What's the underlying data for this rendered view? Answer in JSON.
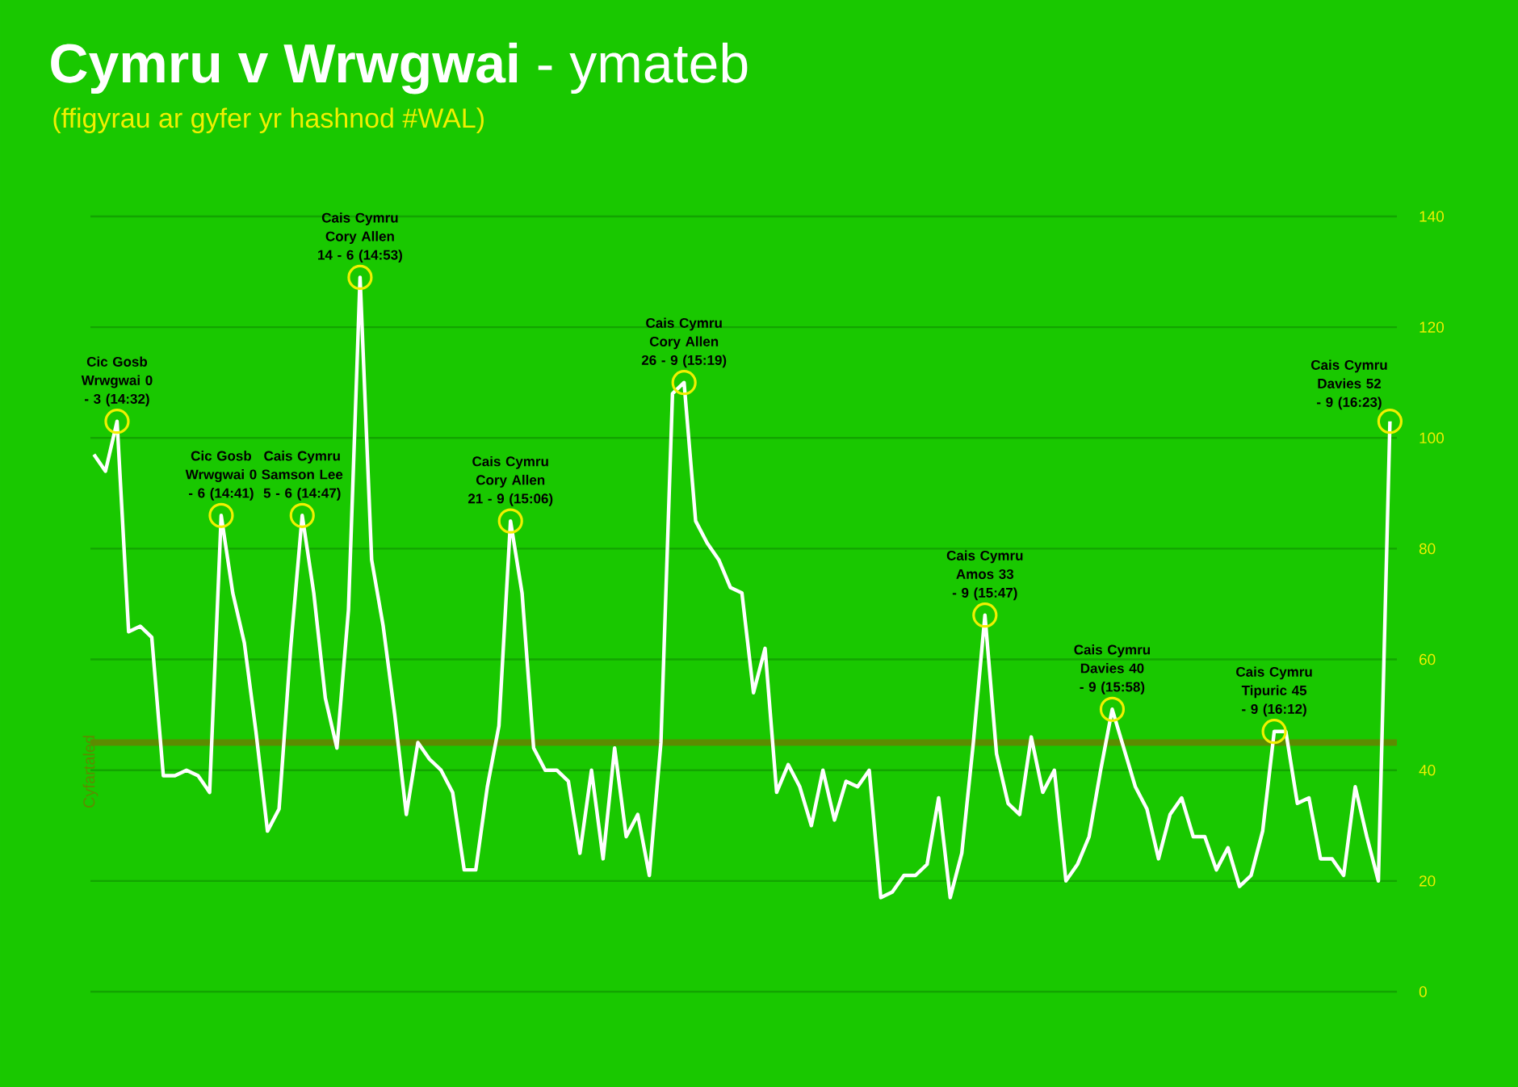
{
  "chart_data": {
    "type": "line",
    "title": "**Cymru v Wrwgwai** - ymateb",
    "subtitle": "(ffigyrau ar gyfer yr hashnod #WAL)",
    "categories": [
      null,
      null,
      null,
      null,
      null,
      null,
      null,
      null,
      null,
      null,
      null,
      null,
      null,
      null,
      null,
      null,
      null,
      null,
      null,
      null,
      null,
      null,
      null,
      null,
      null,
      null,
      null,
      null,
      null,
      null,
      null,
      null,
      null,
      null,
      null,
      null,
      null,
      null,
      null,
      null,
      null,
      null,
      null,
      null,
      null,
      null,
      null,
      null,
      null,
      null,
      null,
      null,
      null,
      null,
      null,
      null,
      null,
      null,
      null,
      null,
      null,
      null,
      null,
      null,
      null,
      null,
      null,
      null,
      null,
      null,
      null,
      null,
      null,
      null,
      null,
      null,
      null,
      null,
      null,
      null,
      null,
      null,
      null,
      null,
      null,
      null,
      null,
      null,
      null,
      null,
      null,
      null,
      null,
      null,
      null,
      null,
      null,
      null,
      null,
      null,
      null,
      null,
      null,
      null,
      null,
      null,
      null,
      null,
      null,
      null,
      null,
      null,
      null
    ],
    "series": [
      {
        "color": "#ffffff",
        "values": [
          97,
          94,
          103,
          65,
          66,
          64,
          39,
          39,
          40,
          39,
          36,
          86,
          72,
          63,
          47,
          29,
          33,
          62,
          86,
          72,
          53,
          44,
          69,
          129,
          78,
          66,
          50,
          32,
          45,
          42,
          40,
          36,
          22,
          22,
          37,
          48,
          85,
          72,
          44,
          40,
          40,
          38,
          25,
          40,
          24,
          44,
          28,
          32,
          21,
          45,
          108,
          110,
          85,
          81,
          78,
          73,
          72,
          54,
          62,
          36,
          41,
          37,
          30,
          40,
          31,
          38,
          37,
          40,
          17,
          18,
          21,
          21,
          23,
          35,
          17,
          25,
          45,
          68,
          43,
          34,
          32,
          46,
          36,
          40,
          20,
          23,
          28,
          40,
          51,
          44,
          37,
          33,
          24,
          32,
          35,
          28,
          28,
          22,
          26,
          19,
          21,
          29,
          47,
          47,
          34,
          35,
          24,
          24,
          21,
          37,
          28,
          20,
          103
        ]
      }
    ],
    "ylim": [
      0,
      140
    ],
    "yticks": [
      0,
      20,
      40,
      60,
      80,
      100,
      120,
      140
    ],
    "grid": "y",
    "tick_labels": "y",
    "marker": "none",
    "line_style": "solid",
    "ref_lines": [
      {
        "axis": "y",
        "value": 45,
        "label": "Cyfartaled",
        "color": "#5c8c00"
      }
    ],
    "annotations": [
      {
        "text": "Cic Gosb Wrwgwai 0 - 3 (14:32)",
        "y": 103
      },
      {
        "text": "Cic Gosb Wrwgwai 0 - 6 (14:41)",
        "y": 86
      },
      {
        "text": "Cais Cymru Samson Lee 5 - 6 (14:47)",
        "y": 86
      },
      {
        "text": "Cais Cymru Cory Allen 14 - 6 (14:53)",
        "y": 129
      },
      {
        "text": "Cais Cymru Cory Allen 21 - 9 (15:06)",
        "y": 85
      },
      {
        "text": "Cais Cymru Cory Allen 26 - 9 (15:19)",
        "y": 110
      },
      {
        "text": "Cais Cymru Amos 33 - 9 (15:47)",
        "y": 68
      },
      {
        "text": "Cais Cymru Davies 40 - 9 (15:58)",
        "y": 51
      },
      {
        "text": "Cais Cymru Tipuric 45 - 9 (16:12)",
        "y": 47
      },
      "Cais Cymru Davies 52 - 9 (16:23)"
    ]
  }
}
